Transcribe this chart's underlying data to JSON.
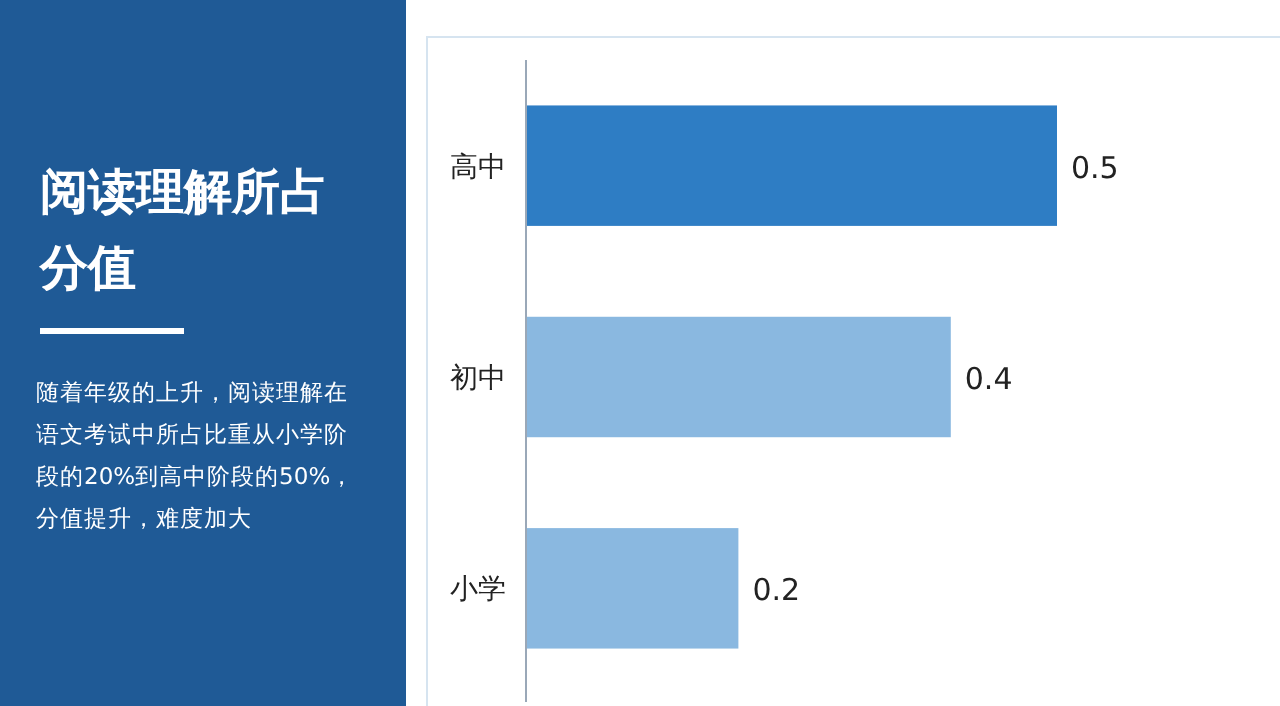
{
  "chart_data": {
    "type": "bar",
    "orientation": "horizontal",
    "title": "阅读理解所占分值",
    "subtitle": "随着年级的上升，阅读理解在语文考试中所占比重从小学阶段的20%到高中阶段的50%，分值提升，难度加大",
    "categories": [
      "高中",
      "初中",
      "小学"
    ],
    "values": [
      0.5,
      0.4,
      0.2
    ],
    "colors": [
      "#2e7dc4",
      "#8ab8e0",
      "#8ab8e0"
    ],
    "data_labels": true
  }
}
